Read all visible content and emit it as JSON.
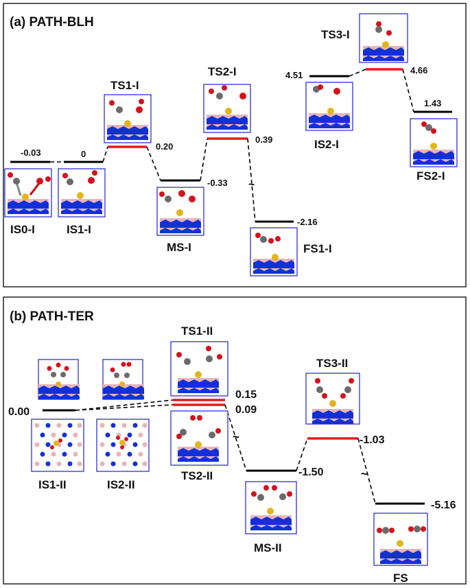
{
  "panel_a": {
    "title": "(a) PATH-BLH",
    "labels": {
      "is0": "IS0-I",
      "is1": "IS1-I",
      "ts1": "TS1-I",
      "ms": "MS-I",
      "ts2": "TS2-I",
      "fs1": "FS1-I",
      "is2": "IS2-I",
      "ts3": "TS3-I",
      "fs2": "FS2-I"
    },
    "energies": {
      "is0": "-0.03",
      "is1": "0",
      "ts1": "0.20",
      "ms": "-0.33",
      "ts2": "0.39",
      "fs1": "-2.16",
      "is2": "4.51",
      "ts3": "4.66",
      "fs2": "1.43"
    }
  },
  "panel_b": {
    "title": "(b) PATH-TER",
    "labels": {
      "is1": "IS1-II",
      "is2": "IS2-II",
      "ts1": "TS1-II",
      "ts2": "TS2-II",
      "ms": "MS-II",
      "ts3": "TS3-II",
      "fs": "FS"
    },
    "energies": {
      "is": "0.00",
      "ts1": "0.15",
      "ts2": "0.09",
      "ms": "-1.50",
      "ts3": "-1.03",
      "fs": "-5.16"
    }
  },
  "colors": {
    "stable_level": "#000000",
    "transition_level": "#e8191a",
    "frame": "#1f1fd0",
    "carbon": "#6b6b6b",
    "oxygen": "#d6121b",
    "metal": "#e2b51b",
    "nitrogen": "#1230d8",
    "boron": "#e8b4b8"
  },
  "marks": {
    "break_symbol": "~"
  }
}
